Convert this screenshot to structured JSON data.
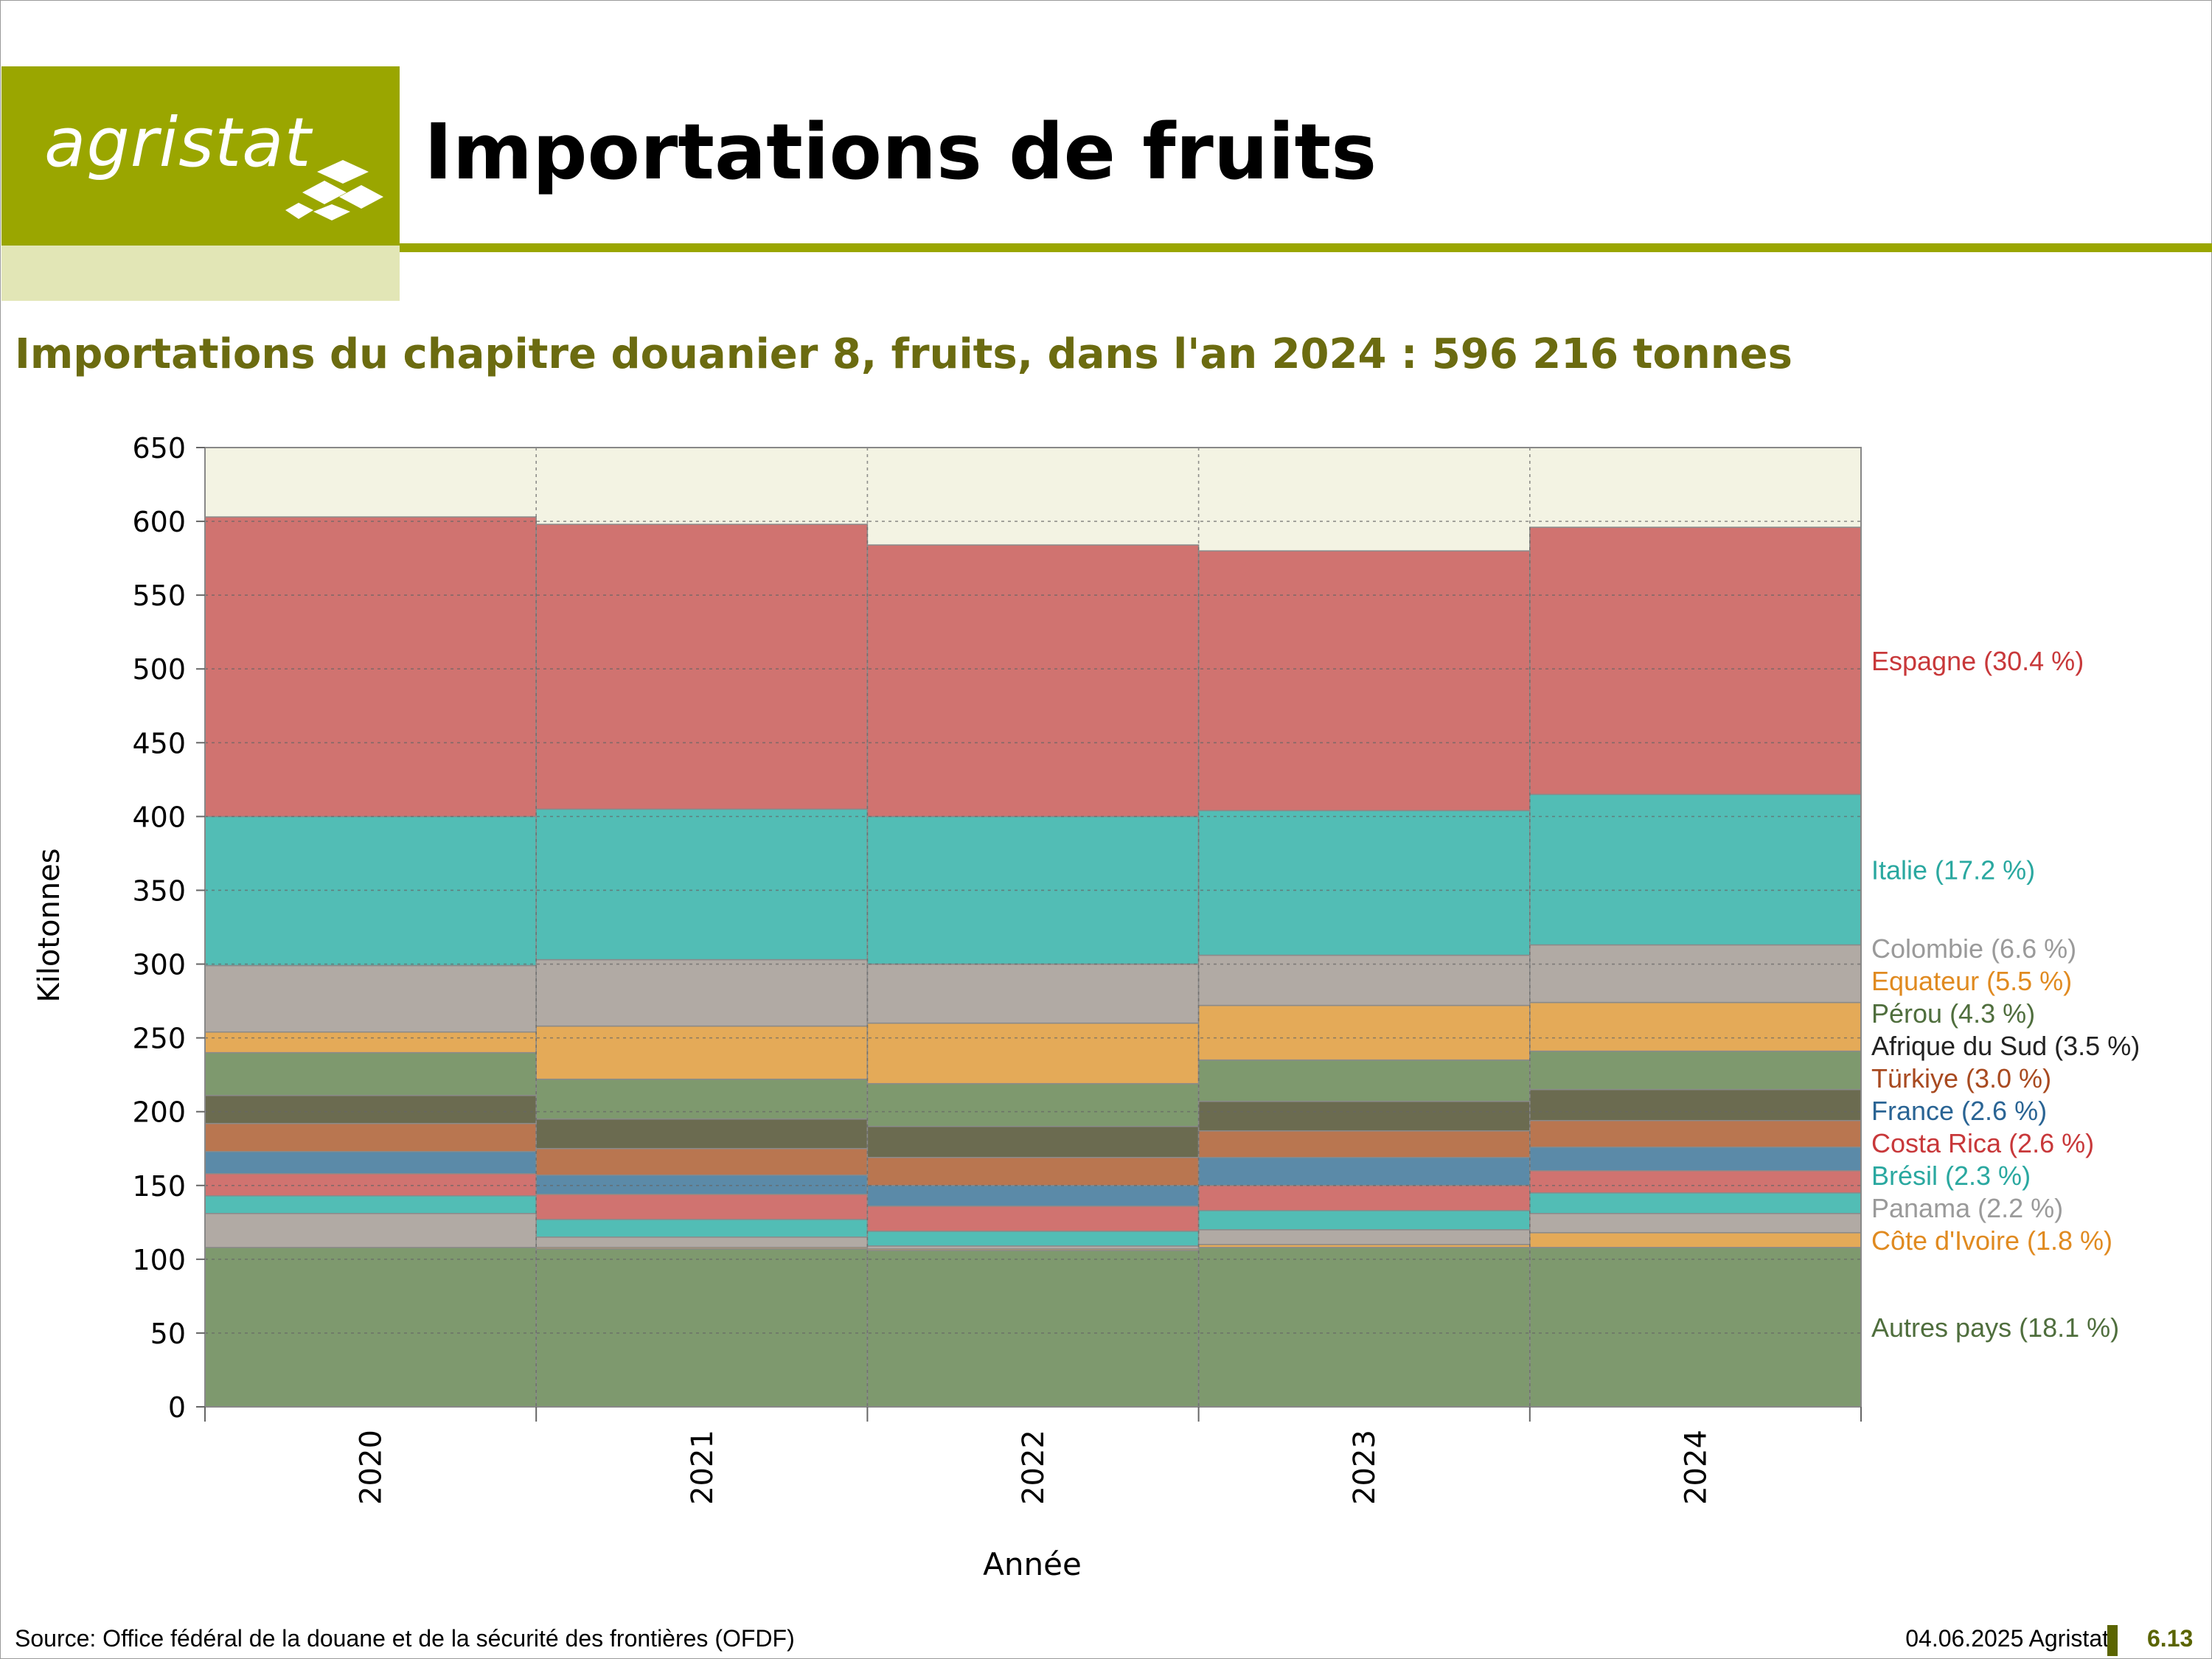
{
  "header": {
    "logo_text": "agristat",
    "title": "Importations de fruits",
    "subtitle": "Importations du chapitre douanier 8, fruits, dans l'an 2024 : 596 216 tonnes"
  },
  "footer": {
    "source": "Source: Office fédéral de la douane et de la sécurité des frontières (OFDF)",
    "date": "04.06.2025 Agristat",
    "page": "6.13"
  },
  "colors": {
    "brand": "#9aa600",
    "brand_light": "#e2e6b6",
    "subtitle": "#6b6b10",
    "plot_background": "#f3f3e3"
  },
  "chart_data": {
    "type": "bar",
    "stacked": true,
    "categories": [
      "2020",
      "2021",
      "2022",
      "2023",
      "2024"
    ],
    "xlabel": "Année",
    "ylabel": "Kilotonnes",
    "ylim": [
      0,
      650
    ],
    "yticks": [
      0,
      50,
      100,
      150,
      200,
      250,
      300,
      350,
      400,
      450,
      500,
      550,
      600,
      650
    ],
    "grid": true,
    "legend_placement": "right",
    "series": [
      {
        "name": "Autres pays",
        "label": "Autres pays (18.1 %)",
        "color": "#7e996e",
        "label_color": "#4f6e3d",
        "values": [
          108,
          107,
          106,
          108,
          108
        ]
      },
      {
        "name": "Côte d'Ivoire",
        "label": "Côte d'Ivoire (1.8 %)",
        "color": "#e4aa58",
        "label_color": "#e08a20",
        "values": [
          0,
          1,
          1,
          2,
          10
        ]
      },
      {
        "name": "Panama",
        "label": "Panama (2.2 %)",
        "color": "#b1aaa4",
        "label_color": "#9a9a9a",
        "values": [
          23,
          7,
          2,
          10,
          13
        ]
      },
      {
        "name": "Brésil",
        "label": "Brésil (2.3 %)",
        "color": "#52bdb5",
        "label_color": "#2aa8a0",
        "values": [
          12,
          12,
          10,
          13,
          14
        ]
      },
      {
        "name": "Costa Rica",
        "label": "Costa Rica (2.6 %)",
        "color": "#d07370",
        "label_color": "#c8383a",
        "values": [
          15,
          17,
          17,
          17,
          15
        ]
      },
      {
        "name": "France",
        "label": "France (2.6 %)",
        "color": "#5b8aa8",
        "label_color": "#2a6494",
        "values": [
          15,
          13,
          14,
          19,
          16
        ]
      },
      {
        "name": "Türkiye",
        "label": "Türkiye (3.0 %)",
        "color": "#b97650",
        "label_color": "#a84a20",
        "values": [
          19,
          18,
          19,
          18,
          18
        ]
      },
      {
        "name": "Afrique du Sud",
        "label": "Afrique du Sud (3.5 %)",
        "color": "#6b6b50",
        "label_color": "#222222",
        "values": [
          19,
          20,
          21,
          20,
          21
        ]
      },
      {
        "name": "Pérou",
        "label": "Pérou (4.3 %)",
        "color": "#7e996e",
        "label_color": "#4f6e3d",
        "values": [
          29,
          27,
          29,
          28,
          26
        ]
      },
      {
        "name": "Equateur",
        "label": "Equateur (5.5 %)",
        "color": "#e4aa58",
        "label_color": "#e08a20",
        "values": [
          14,
          36,
          41,
          37,
          33
        ]
      },
      {
        "name": "Colombie",
        "label": "Colombie (6.6 %)",
        "color": "#b1aaa4",
        "label_color": "#9a9a9a",
        "values": [
          45,
          45,
          40,
          34,
          39
        ]
      },
      {
        "name": "Italie",
        "label": "Italie (17.2 %)",
        "color": "#52bdb5",
        "label_color": "#2aa8a0",
        "values": [
          101,
          102,
          100,
          98,
          102
        ]
      },
      {
        "name": "Espagne",
        "label": "Espagne (30.4 %)",
        "color": "#d07370",
        "label_color": "#c8383a",
        "values": [
          203,
          193,
          184,
          176,
          181
        ]
      }
    ]
  }
}
